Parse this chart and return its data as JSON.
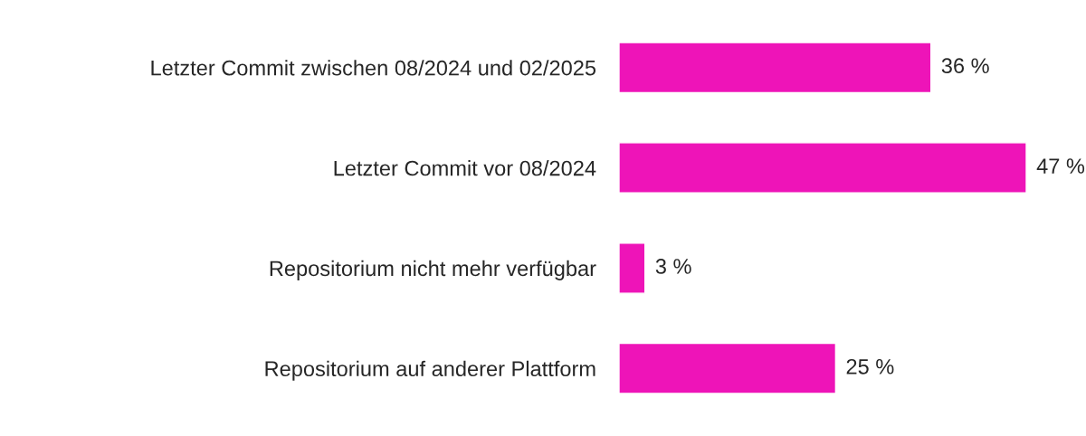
{
  "chart_data": {
    "type": "bar",
    "orientation": "horizontal",
    "categories": [
      "Letzter Commit zwischen 08/2024 und 02/2025",
      "Letzter Commit vor 08/2024",
      "Repositorium nicht mehr verfügbar",
      "Repositorium auf anderer Plattform"
    ],
    "values": [
      36,
      47,
      3,
      25
    ],
    "color": "#ee14b8",
    "value_labels": [
      "36 %",
      "47 %",
      "3 %",
      "25 %"
    ],
    "tick_labels": "y",
    "grid": false,
    "legend": false
  }
}
